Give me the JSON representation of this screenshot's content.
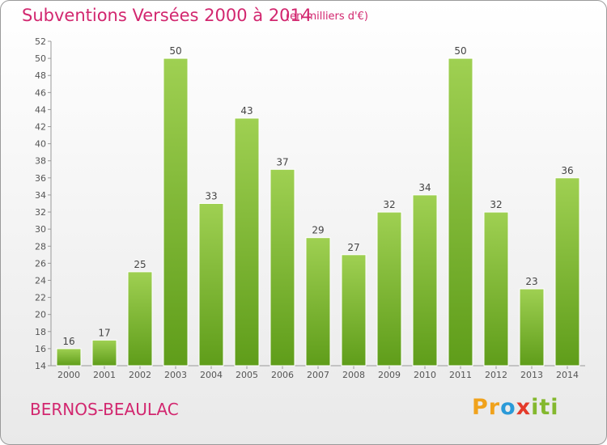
{
  "header": {
    "title": "Subventions Versées 2000 à 2014",
    "unit": "(en milliers d'€)"
  },
  "footer": {
    "commune": "BERNOS-BEAULAC",
    "logo": {
      "text": "Proxiti",
      "letters": [
        "P",
        "r",
        "o",
        "x",
        "i",
        "t",
        "i"
      ],
      "colors": [
        "#f0a21c",
        "#f0a21c",
        "#2b9ad8",
        "#e43a2a",
        "#84b82e",
        "#84b82e",
        "#84b82e"
      ]
    }
  },
  "colors": {
    "accent": "#d2276f",
    "bar_top": "#9fd052",
    "bar_bottom": "#5f9d1a",
    "grid": "#cccccc"
  },
  "chart_data": {
    "type": "bar",
    "title": "Subventions Versées 2000 à 2014",
    "subtitle": "(en milliers d'€)",
    "xlabel": "",
    "ylabel": "",
    "categories": [
      "2000",
      "2001",
      "2002",
      "2003",
      "2004",
      "2005",
      "2006",
      "2007",
      "2008",
      "2009",
      "2010",
      "2011",
      "2012",
      "2013",
      "2014"
    ],
    "values": [
      16,
      17,
      25,
      50,
      33,
      43,
      37,
      29,
      27,
      32,
      34,
      50,
      32,
      23,
      36
    ],
    "ylim": [
      14,
      52
    ],
    "yticks": [
      14,
      16,
      18,
      20,
      22,
      24,
      26,
      28,
      30,
      32,
      34,
      36,
      38,
      40,
      42,
      44,
      46,
      48,
      50,
      52
    ],
    "grid": false,
    "legend": "none",
    "data_labels": true
  }
}
